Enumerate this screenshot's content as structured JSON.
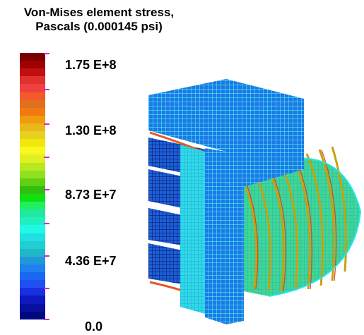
{
  "title_line1": "Von-Mises element stress,",
  "title_line2": "Pascals (0.000145 psi)",
  "legend": {
    "labels": [
      "1.75 E+8",
      "1.30 E+8",
      "8.73 E+7",
      "4.36 E+7",
      "0.0"
    ],
    "colors": [
      "#7a0000",
      "#a00000",
      "#c01010",
      "#e03030",
      "#f04040",
      "#f25a2a",
      "#e07020",
      "#f07a10",
      "#f09a10",
      "#e8b818",
      "#e8d020",
      "#f0e80a",
      "#f8f820",
      "#e0f020",
      "#b8e820",
      "#90e020",
      "#60d010",
      "#30c010",
      "#10e010",
      "#20f060",
      "#20e8a0",
      "#20f0c0",
      "#20f8e8",
      "#20e0e0",
      "#20d0d0",
      "#20b8c8",
      "#2098d8",
      "#2080f0",
      "#1868f0",
      "#2050f0",
      "#1830e0",
      "#1018c0",
      "#0810a0",
      "#000880"
    ]
  }
}
